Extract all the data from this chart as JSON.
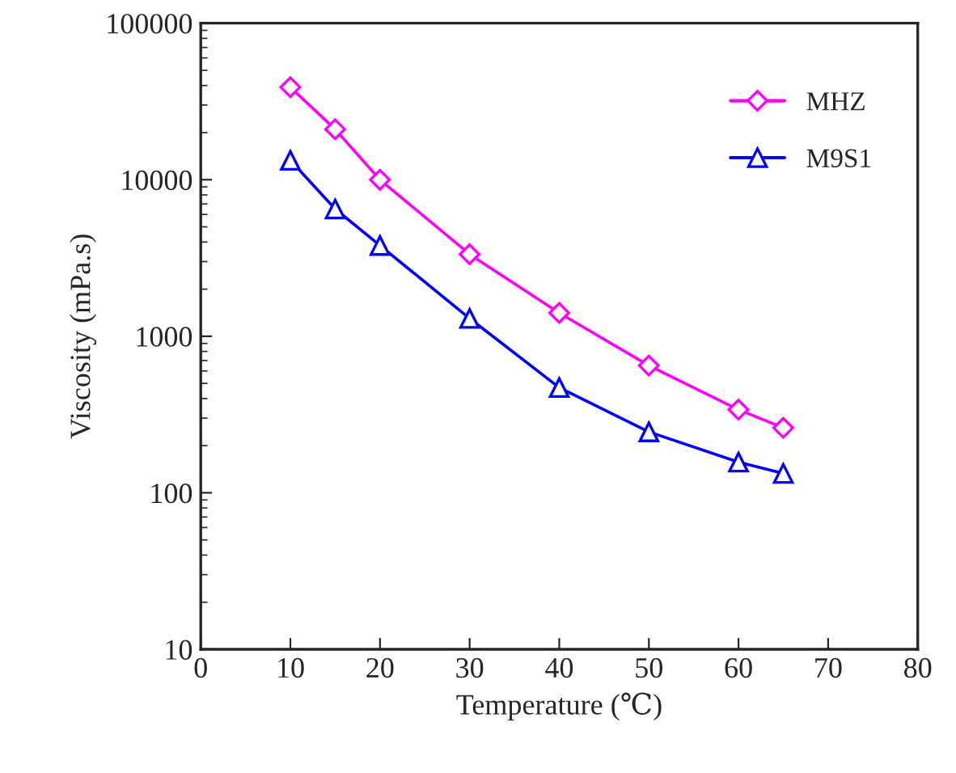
{
  "chart_data": {
    "type": "line",
    "xlabel": "Temperature (℃)",
    "ylabel": "Viscosity (mPa.s)",
    "x": [
      10,
      15,
      20,
      30,
      40,
      50,
      60,
      65
    ],
    "series": [
      {
        "name": "MHZ",
        "color": "#ff00ff",
        "marker": "diamond",
        "values": [
          39000,
          21000,
          10000,
          3340,
          1410,
          650,
          340,
          260
        ]
      },
      {
        "name": "M9S1",
        "color": "#0000ff",
        "marker": "triangle",
        "values": [
          13300,
          6500,
          3800,
          1300,
          470,
          245,
          157,
          133
        ]
      }
    ],
    "log": "y",
    "xlim": [
      0,
      80
    ],
    "xticks": [
      0,
      10,
      20,
      30,
      40,
      50,
      60,
      70,
      80
    ],
    "ylim": [
      10,
      100000
    ],
    "yticks": [
      10,
      100,
      1000,
      10000,
      100000
    ],
    "grid": false,
    "legend": "top right",
    "line_style": "solid"
  }
}
